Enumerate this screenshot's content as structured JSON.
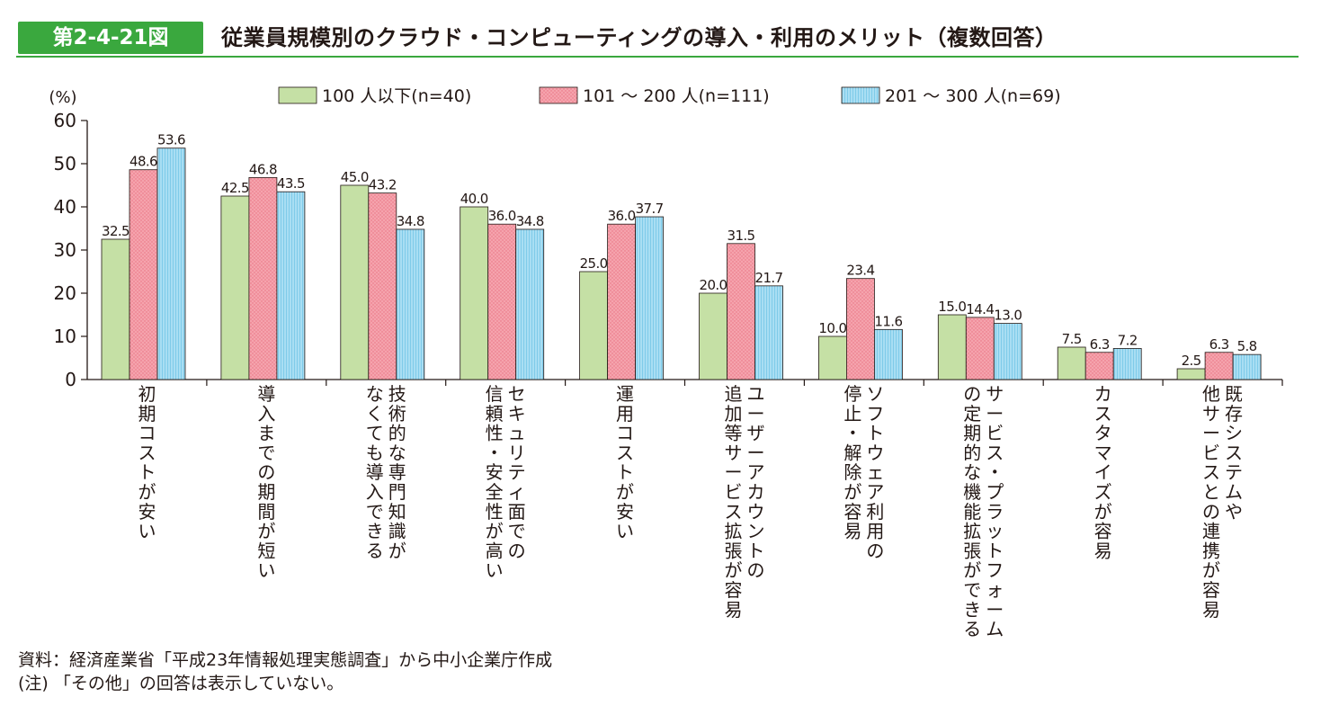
{
  "figure": {
    "number": "第2-4-21図",
    "title": "従業員規模別のクラウド・コンピューティングの導入・利用のメリット（複数回答）",
    "accent_color": "#3aa83e"
  },
  "notes": {
    "source": "資料：経済産業省「平成23年情報処理実態調査」から中小企業庁作成",
    "note": "(注) 「その他」の回答は表示していない。"
  },
  "chart_data": {
    "type": "bar",
    "ylabel": "(%)",
    "ylim": [
      0,
      60
    ],
    "yticks": [
      0,
      10,
      20,
      30,
      40,
      50,
      60
    ],
    "categories": [
      "初期コストが安い",
      "導入までの期間が短い",
      "技術的な専門知識がなくても導入できる",
      "セキュリティ面での信頼性・安全性が高い",
      "運用コストが安い",
      "ユーザーアカウントの追加等サービス拡張が容易",
      "ソフトウェア利用の停止・解除が容易",
      "サービス・プラットフォームの定期的な機能拡張ができる",
      "カスタマイズが容易",
      "既存システムや他サービスとの連携が容易"
    ],
    "category_lines": [
      [
        "初期コストが安い"
      ],
      [
        "導入までの期間が短い"
      ],
      [
        "技術的な専門知識が",
        "なくても導入できる"
      ],
      [
        "セキュリティ面での",
        "信頼性・安全性が高い"
      ],
      [
        "運用コストが安い"
      ],
      [
        "ユーザーアカウントの",
        "追加等サービス拡張が容易"
      ],
      [
        "ソフトウェア利用の",
        "停止・解除が容易"
      ],
      [
        "サービス・プラットフォーム",
        "の定期的な機能拡張ができる"
      ],
      [
        "カスタマイズが容易"
      ],
      [
        "既存システムや",
        "他サービスとの連携が容易"
      ]
    ],
    "series": [
      {
        "name": "100 人以下(n=40)",
        "color": "#c5e0a5",
        "values": [
          32.5,
          42.5,
          45.0,
          40.0,
          25.0,
          20.0,
          10.0,
          15.0,
          7.5,
          2.5
        ]
      },
      {
        "name": "101 ～ 200 人(n=111)",
        "color": "#f5a3ad",
        "values": [
          48.6,
          46.8,
          43.2,
          36.0,
          36.0,
          31.5,
          23.4,
          14.4,
          6.3,
          6.3
        ]
      },
      {
        "name": "201 ～ 300 人(n=69)",
        "color": "#a9def3",
        "values": [
          53.6,
          43.5,
          34.8,
          34.8,
          37.7,
          21.7,
          11.6,
          13.0,
          7.2,
          5.8
        ]
      }
    ],
    "legend_position": "top",
    "grid": false
  }
}
